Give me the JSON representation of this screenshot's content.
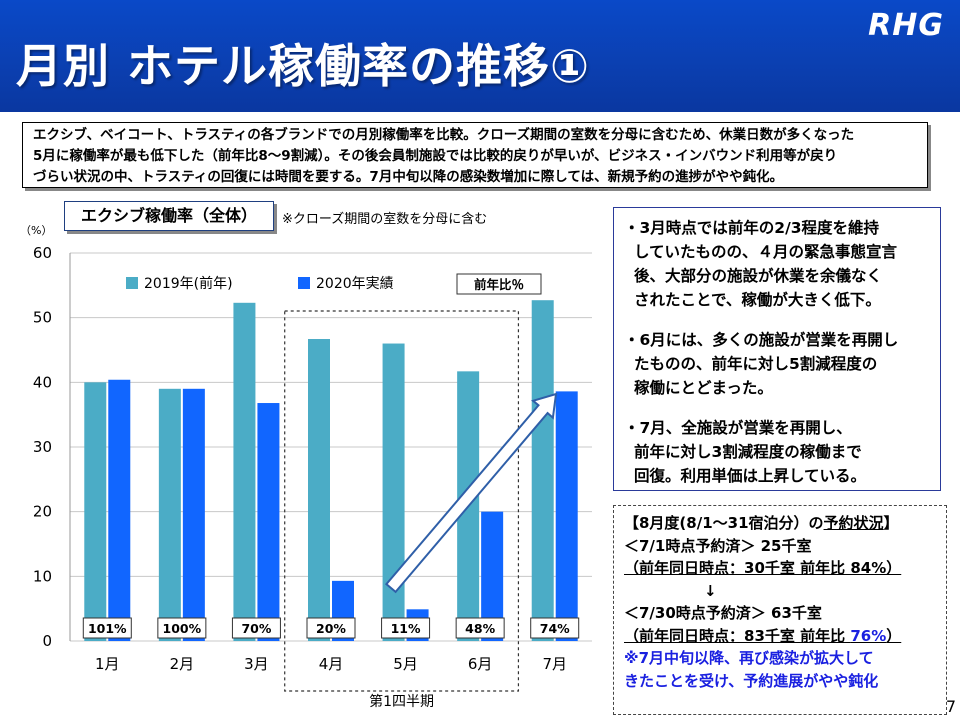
{
  "header": {
    "title": "月別 ホテル稼働率の推移①",
    "logo": "RHG"
  },
  "summary": {
    "lines": [
      "エクシブ、ベイコート、トラスティの各ブランドでの月別稼働率を比較。クローズ期間の室数を分母に含むため、休業日数が多くなった",
      "5月に稼働率が最も低下した（前年比8～9割減）。その後会員制施設では比較的戻りが早いが、ビジネス・インバウンド利用等が戻り",
      "づらい状況の中、トラスティの回復には時間を要する。7月中旬以降の感染数増加に際しては、新規予約の進捗がやや鈍化。"
    ]
  },
  "chart": {
    "title_box": "エクシブ稼働率（全体）",
    "note": "※クローズ期間の室数を分母に含む",
    "unit": "（%）"
  },
  "chart_data": {
    "type": "bar",
    "categories": [
      "1月",
      "2月",
      "3月",
      "4月",
      "5月",
      "6月",
      "7月"
    ],
    "series": [
      {
        "name": "2019年(前年)",
        "values": [
          40,
          39,
          52.3,
          46.7,
          46,
          41.7,
          52.7
        ],
        "color": "#4bacc6"
      },
      {
        "name": "2020年実績",
        "values": [
          40.4,
          39,
          36.8,
          9.3,
          4.9,
          20,
          38.6
        ],
        "color": "#1166ff"
      }
    ],
    "yoy_labels": [
      "101%",
      "100%",
      "70%",
      "20%",
      "11%",
      "48%",
      "74%"
    ],
    "yoy_legend": "前年比％",
    "ylim": [
      0,
      60
    ],
    "yticks": [
      0,
      10,
      20,
      30,
      40,
      50,
      60
    ],
    "group_label": "第1四半期",
    "gridlines": true,
    "legend_position": "top"
  },
  "right_box": {
    "paragraphs": [
      [
        "・3月時点では前年の2/3程度を維持",
        "していたものの、４月の緊急事態宣言",
        "後、大部分の施設が休業を余儀なく",
        "されたことで、稼働が大きく低下。"
      ],
      [
        "・6月には、多くの施設が営業を再開し",
        "たものの、前年に対し5割減程度の",
        "稼働にとどまった。"
      ],
      [
        "・7月、全施設が営業を再開し、",
        "前年に対し3割減程度の稼働まで",
        "回復。利用単価は上昇している。"
      ]
    ]
  },
  "booking": {
    "title_prefix": "【8月度(8/1～31宿泊分）の",
    "title_underlined": "予約状況",
    "title_suffix": "】",
    "line1": "＜7/1時点予約済＞ 25千室",
    "line2": "（前年同日時点：30千室 前年比 84%）",
    "arrow": "↓",
    "line3": "＜7/30時点予約済＞ 63千室",
    "line4_prefix": "（前年同日時点：83千室 前年比 ",
    "line4_value": "76%",
    "line4_suffix": "）",
    "note1": "※7月中旬以降、再び感染が拡大して",
    "note2": "きたことを受け、予約進展がやや鈍化"
  },
  "page_number": "7"
}
